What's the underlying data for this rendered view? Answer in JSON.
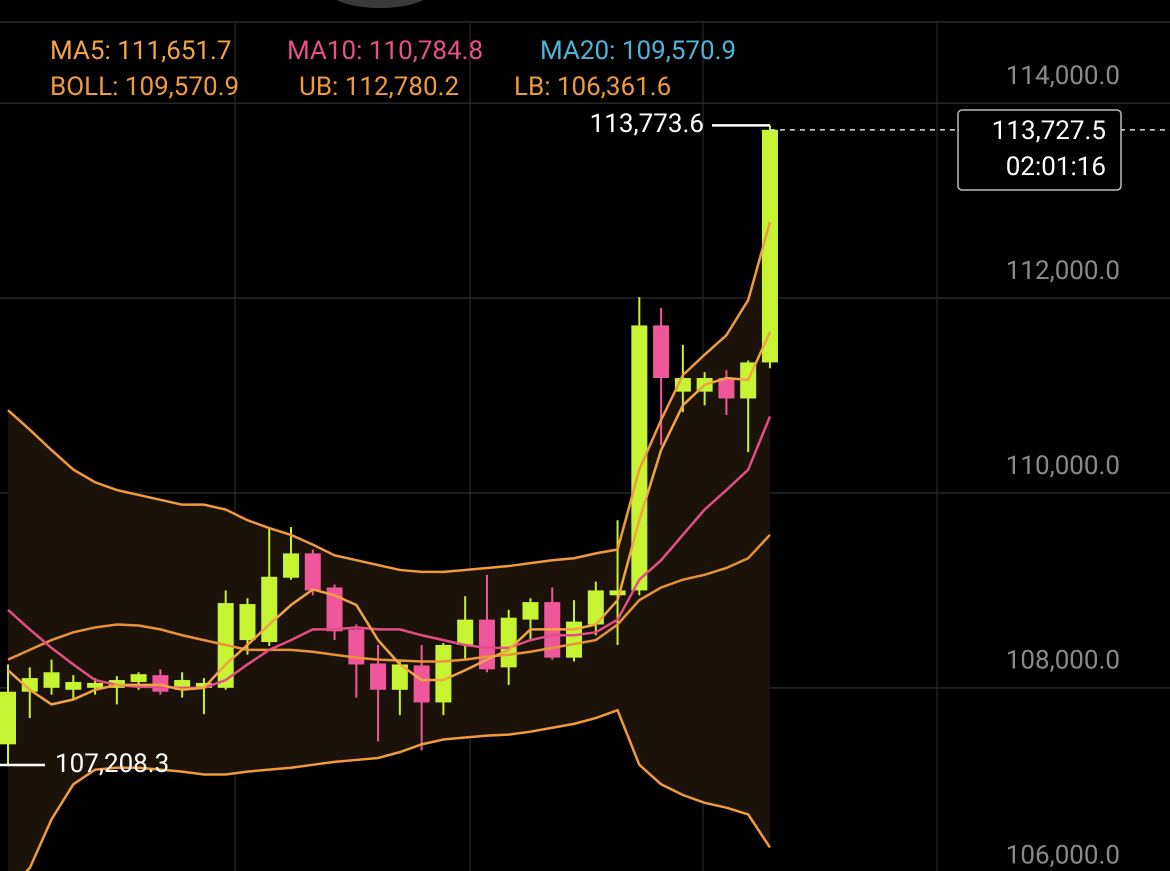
{
  "chart_data": {
    "type": "candlestick",
    "header": [
      [
        {
          "text": "MA5: 111,651.7",
          "color": "#f2a444"
        },
        {
          "text": "MA10: 110,784.8",
          "color": "#e8508a"
        },
        {
          "text": "MA20: 109,570.9",
          "color": "#4fb3d9"
        }
      ],
      [
        {
          "text": "BOLL: 109,570.9",
          "color": "#f09a3e"
        },
        {
          "text": "UB: 112,780.2",
          "color": "#f09a3e"
        },
        {
          "text": "LB: 106,361.6",
          "color": "#f09a3e"
        }
      ]
    ],
    "up_color": "#c6f432",
    "down_color": "#f0569a",
    "band_fill": "#1b1309",
    "candles": [
      {
        "open": 107420,
        "high": 108240,
        "low": 107208.3,
        "close": 107960
      },
      {
        "open": 107960,
        "high": 108210,
        "low": 107690,
        "close": 108100
      },
      {
        "open": 108000,
        "high": 108290,
        "low": 107930,
        "close": 108160
      },
      {
        "open": 107980,
        "high": 108130,
        "low": 107880,
        "close": 108060
      },
      {
        "open": 108000,
        "high": 108100,
        "low": 107930,
        "close": 108050
      },
      {
        "open": 108000,
        "high": 108120,
        "low": 107830,
        "close": 108080
      },
      {
        "open": 108060,
        "high": 108160,
        "low": 107980,
        "close": 108140
      },
      {
        "open": 108130,
        "high": 108190,
        "low": 107930,
        "close": 107960
      },
      {
        "open": 107980,
        "high": 108160,
        "low": 107900,
        "close": 108080
      },
      {
        "open": 108000,
        "high": 108100,
        "low": 107730,
        "close": 108050
      },
      {
        "open": 108000,
        "high": 109000,
        "low": 107980,
        "close": 108870
      },
      {
        "open": 108490,
        "high": 108920,
        "low": 108340,
        "close": 108860
      },
      {
        "open": 108470,
        "high": 109650,
        "low": 108430,
        "close": 109140
      },
      {
        "open": 109130,
        "high": 109650,
        "low": 109110,
        "close": 109380
      },
      {
        "open": 109380,
        "high": 109420,
        "low": 108950,
        "close": 109000
      },
      {
        "open": 109030,
        "high": 109060,
        "low": 108490,
        "close": 108580
      },
      {
        "open": 108600,
        "high": 108650,
        "low": 107900,
        "close": 108240
      },
      {
        "open": 108250,
        "high": 108440,
        "low": 107450,
        "close": 107980
      },
      {
        "open": 107980,
        "high": 108290,
        "low": 107720,
        "close": 108240
      },
      {
        "open": 108230,
        "high": 108440,
        "low": 107360,
        "close": 107850
      },
      {
        "open": 107850,
        "high": 108460,
        "low": 107720,
        "close": 108440
      },
      {
        "open": 108440,
        "high": 108940,
        "low": 108290,
        "close": 108700
      },
      {
        "open": 108700,
        "high": 109160,
        "low": 108160,
        "close": 108190
      },
      {
        "open": 108210,
        "high": 108800,
        "low": 108030,
        "close": 108720
      },
      {
        "open": 108700,
        "high": 108920,
        "low": 108490,
        "close": 108880
      },
      {
        "open": 108880,
        "high": 109030,
        "low": 108290,
        "close": 108310
      },
      {
        "open": 108310,
        "high": 108900,
        "low": 108270,
        "close": 108680
      },
      {
        "open": 108650,
        "high": 109090,
        "low": 108540,
        "close": 109000
      },
      {
        "open": 108950,
        "high": 109720,
        "low": 108440,
        "close": 109000
      },
      {
        "open": 109000,
        "high": 112010,
        "low": 108950,
        "close": 111720
      },
      {
        "open": 111720,
        "high": 111900,
        "low": 110490,
        "close": 111180
      },
      {
        "open": 111040,
        "high": 111520,
        "low": 110830,
        "close": 111180
      },
      {
        "open": 111040,
        "high": 111240,
        "low": 110900,
        "close": 111180
      },
      {
        "open": 111180,
        "high": 111260,
        "low": 110800,
        "close": 110970
      },
      {
        "open": 110970,
        "high": 111360,
        "low": 110420,
        "close": 111340
      },
      {
        "open": 111340,
        "high": 113773.6,
        "low": 111280,
        "close": 113727.5
      }
    ],
    "series": [
      {
        "name": "UB",
        "color": "#f09a3e",
        "values": [
          110850,
          110650,
          110440,
          110240,
          110110,
          110030,
          109980,
          109930,
          109880,
          109880,
          109830,
          109720,
          109640,
          109570,
          109470,
          109360,
          109310,
          109260,
          109210,
          109190,
          109190,
          109210,
          109230,
          109250,
          109280,
          109310,
          109330,
          109380,
          109420,
          110240,
          110750,
          111210,
          111420,
          111620,
          111980,
          112780.2
        ]
      },
      {
        "name": "LB",
        "color": "#f09a3e",
        "values": [
          105930,
          106150,
          106650,
          107010,
          107160,
          107180,
          107180,
          107160,
          107140,
          107110,
          107110,
          107140,
          107160,
          107180,
          107210,
          107240,
          107260,
          107280,
          107340,
          107420,
          107470,
          107490,
          107510,
          107520,
          107550,
          107590,
          107630,
          107690,
          107770,
          107210,
          107010,
          106900,
          106820,
          106770,
          106700,
          106361.6
        ]
      },
      {
        "name": "BOLL",
        "color": "#e8923a",
        "values": [
          108290,
          108390,
          108490,
          108570,
          108620,
          108650,
          108640,
          108600,
          108540,
          108490,
          108440,
          108390,
          108390,
          108390,
          108370,
          108340,
          108310,
          108290,
          108280,
          108270,
          108270,
          108290,
          108320,
          108340,
          108370,
          108410,
          108450,
          108490,
          108650,
          108900,
          109030,
          109110,
          109160,
          109230,
          109330,
          109570.9
        ]
      },
      {
        "name": "MA10",
        "color": "#e24d87",
        "values": [
          108800,
          108600,
          108410,
          108240,
          108080,
          108030,
          108010,
          108010,
          108000,
          108000,
          108080,
          108240,
          108390,
          108490,
          108600,
          108600,
          108620,
          108600,
          108600,
          108540,
          108490,
          108440,
          108410,
          108410,
          108490,
          108540,
          108540,
          108570,
          108700,
          109110,
          109310,
          109570,
          109830,
          110030,
          110240,
          110784.8
        ]
      },
      {
        "name": "MA5",
        "color": "#f2a444",
        "values": [
          108180,
          107980,
          107830,
          107880,
          107980,
          108030,
          108030,
          108030,
          107980,
          108000,
          108240,
          108440,
          108650,
          108850,
          109010,
          108950,
          108850,
          108490,
          108240,
          108080,
          108080,
          108180,
          108290,
          108390,
          108600,
          108600,
          108600,
          108650,
          108900,
          109720,
          110440,
          110900,
          111110,
          111180,
          111160,
          111651.7
        ]
      }
    ],
    "high_marker": {
      "value": 113773.6,
      "label": "113,773.6"
    },
    "low_marker": {
      "value": 107208.3,
      "label": "107,208.3"
    },
    "last_price": {
      "value": 113727.5,
      "label": "113,727.5"
    },
    "last_time": "02:01:16",
    "ylim": [
      106120,
      115060
    ],
    "yticks": [
      {
        "value": 114000,
        "label": "114,000.0"
      },
      {
        "value": 112000,
        "label": "112,000.0"
      },
      {
        "value": 110000,
        "label": "110,000.0"
      },
      {
        "value": 108000,
        "label": "108,000.0"
      },
      {
        "value": 106000,
        "label": "106,000.0"
      }
    ],
    "grid": true
  }
}
